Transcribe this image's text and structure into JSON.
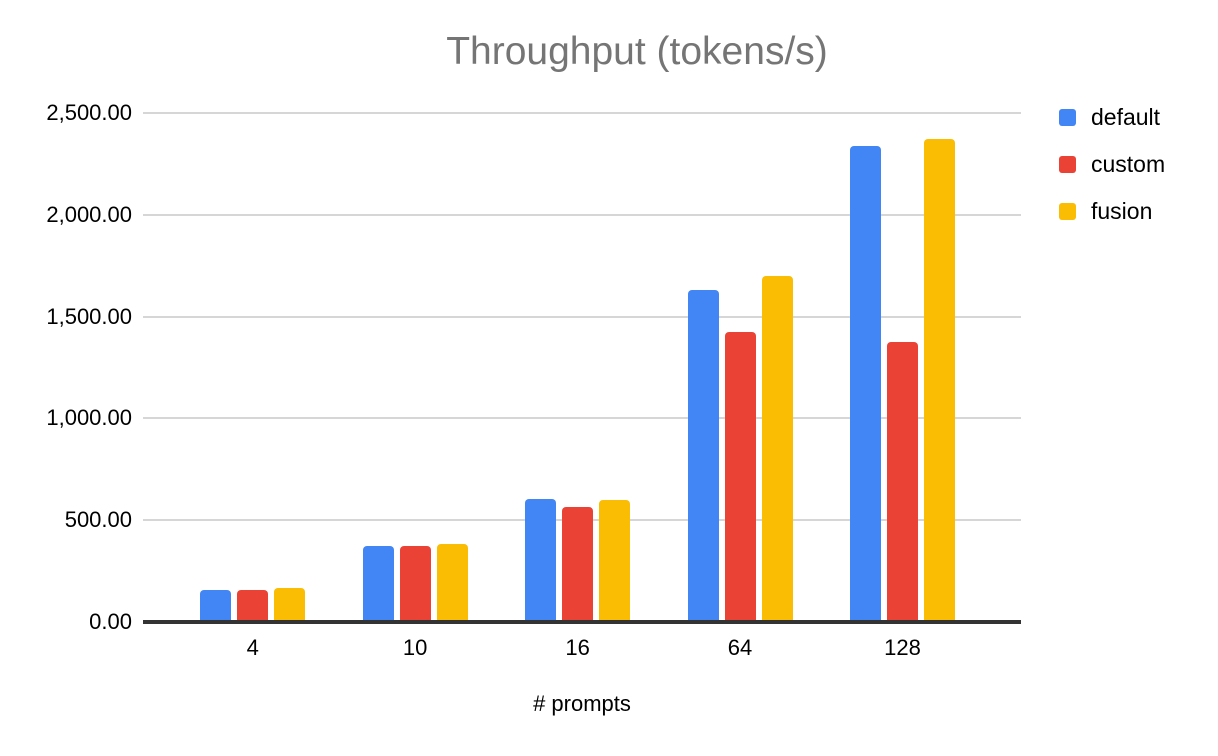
{
  "chart_data": {
    "type": "bar",
    "title": "Throughput (tokens/s)",
    "xlabel": "# prompts",
    "ylabel": "",
    "categories": [
      "4",
      "10",
      "16",
      "64",
      "128"
    ],
    "series": [
      {
        "name": "default",
        "color": "#4285F4",
        "values": [
          155,
          372,
          605,
          1630,
          2340
        ]
      },
      {
        "name": "custom",
        "color": "#EA4335",
        "values": [
          157,
          372,
          565,
          1425,
          1375
        ]
      },
      {
        "name": "fusion",
        "color": "#FBBC04",
        "values": [
          167,
          383,
          598,
          1700,
          2370
        ]
      }
    ],
    "ylim": [
      0,
      2500
    ],
    "yticks": [
      {
        "value": 0,
        "label": "0.00"
      },
      {
        "value": 500,
        "label": "500.00"
      },
      {
        "value": 1000,
        "label": "1,000.00"
      },
      {
        "value": 1500,
        "label": "1,500.00"
      },
      {
        "value": 2000,
        "label": "2,000.00"
      },
      {
        "value": 2500,
        "label": "2,500.00"
      }
    ],
    "grid": true,
    "legend_position": "top-right",
    "colors": {
      "title_text": "#757575",
      "axis_text": "#000000",
      "gridline": "#d6d6d6",
      "axis_line": "#333333",
      "background": "#ffffff"
    }
  }
}
